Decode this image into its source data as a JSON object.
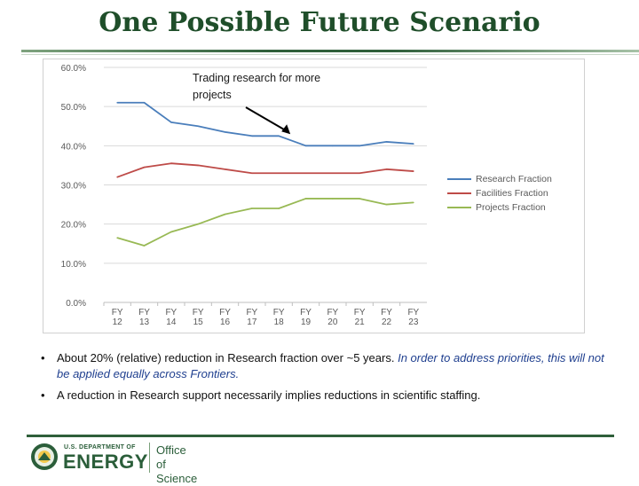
{
  "slide": {
    "title": "One Possible Future Scenario"
  },
  "chart_data": {
    "type": "line",
    "categories": [
      [
        "FY",
        "12"
      ],
      [
        "FY",
        "13"
      ],
      [
        "FY",
        "14"
      ],
      [
        "FY",
        "15"
      ],
      [
        "FY",
        "16"
      ],
      [
        "FY",
        "17"
      ],
      [
        "FY",
        "18"
      ],
      [
        "FY",
        "19"
      ],
      [
        "FY",
        "20"
      ],
      [
        "FY",
        "21"
      ],
      [
        "FY",
        "22"
      ],
      [
        "FY",
        "23"
      ]
    ],
    "y_ticks": [
      "0.0%",
      "10.0%",
      "20.0%",
      "30.0%",
      "40.0%",
      "50.0%",
      "60.0%"
    ],
    "ylim": [
      0,
      60
    ],
    "series": [
      {
        "name": "Research Fraction",
        "color": "#4a7ebb",
        "values": [
          51.0,
          51.0,
          46.0,
          45.0,
          43.5,
          42.5,
          42.5,
          40.0,
          40.0,
          40.0,
          41.0,
          40.5
        ]
      },
      {
        "name": "Facilities Fraction",
        "color": "#be4b48",
        "values": [
          32.0,
          34.5,
          35.5,
          35.0,
          34.0,
          33.0,
          33.0,
          33.0,
          33.0,
          33.0,
          34.0,
          33.5
        ]
      },
      {
        "name": "Projects Fraction",
        "color": "#98b954",
        "values": [
          16.5,
          14.5,
          18.0,
          20.0,
          22.5,
          24.0,
          24.0,
          26.5,
          26.5,
          26.5,
          25.0,
          25.5
        ]
      }
    ],
    "annotation": {
      "text": [
        "Trading research for more",
        "projects"
      ]
    },
    "legend_position": "right"
  },
  "bullets": [
    {
      "marker": "•",
      "text": "About 20% (relative) reduction in Research fraction over ~5 years.",
      "emphasis": "In order to address priorities, this will not be applied equally across Frontiers."
    },
    {
      "marker": "•",
      "text": "A reduction in Research support necessarily implies reductions in scientific staffing.",
      "emphasis": ""
    }
  ],
  "footer": {
    "dept_small": "U.S. DEPARTMENT OF",
    "dept_big": "ENERGY",
    "office_line1": "Office of",
    "office_line2": "Science"
  }
}
